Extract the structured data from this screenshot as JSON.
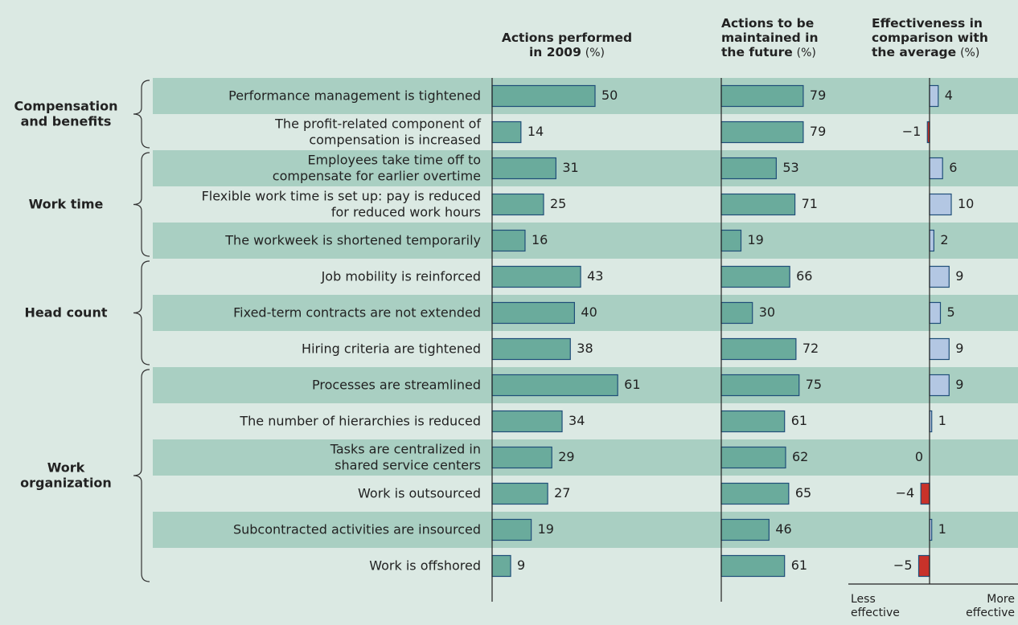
{
  "groups": [
    {
      "label": "Compensation\nand benefits",
      "rows": [
        "Performance management is tightened",
        "The profit-related component of\ncompensation is increased"
      ]
    },
    {
      "label": "Work time",
      "rows": [
        "Employees take time off to\ncompensate for earlier overtime",
        "Flexible work time is set up: pay is reduced\nfor reduced work hours",
        "The workweek is shortened temporarily"
      ]
    },
    {
      "label": "Head count",
      "rows": [
        "Job mobility is reinforced",
        "Fixed-term contracts are not extended",
        "Hiring criteria are tightened"
      ]
    },
    {
      "label": "Work\norganization",
      "rows": [
        "Processes are streamlined",
        "The number of hierarchies is reduced",
        "Tasks are centralized in\nshared service centers",
        "Work is outsourced",
        "Subcontracted activities are insourced",
        "Work is offshored"
      ]
    }
  ],
  "chart_data": [
    {
      "type": "bar",
      "title": "Actions performed\nin 2009",
      "unit": "(%)",
      "color": "#6aab9c",
      "values": [
        50,
        14,
        31,
        25,
        16,
        43,
        40,
        38,
        61,
        34,
        29,
        27,
        19,
        9
      ]
    },
    {
      "type": "bar",
      "title": "Actions to be\nmaintained in\nthe future",
      "unit": "(%)",
      "color": "#6aab9c",
      "values": [
        79,
        79,
        53,
        71,
        19,
        66,
        30,
        72,
        75,
        61,
        62,
        65,
        46,
        61
      ]
    },
    {
      "type": "diverging-bar",
      "title": "Effectiveness in\ncomparison with\nthe average",
      "unit": "(%)",
      "color": "#b3c7e3",
      "negative_color": "#c8322a",
      "values": [
        4,
        -1,
        6,
        10,
        2,
        9,
        5,
        9,
        9,
        1,
        0,
        -4,
        1,
        -5
      ],
      "value_labels": [
        "4",
        "−1",
        "6",
        "10",
        "2",
        "9",
        "5",
        "9",
        "9",
        "1",
        "0",
        "−4",
        "1",
        "−5"
      ],
      "axis_labels": [
        "Less\neffective",
        "More\neffective"
      ]
    }
  ]
}
